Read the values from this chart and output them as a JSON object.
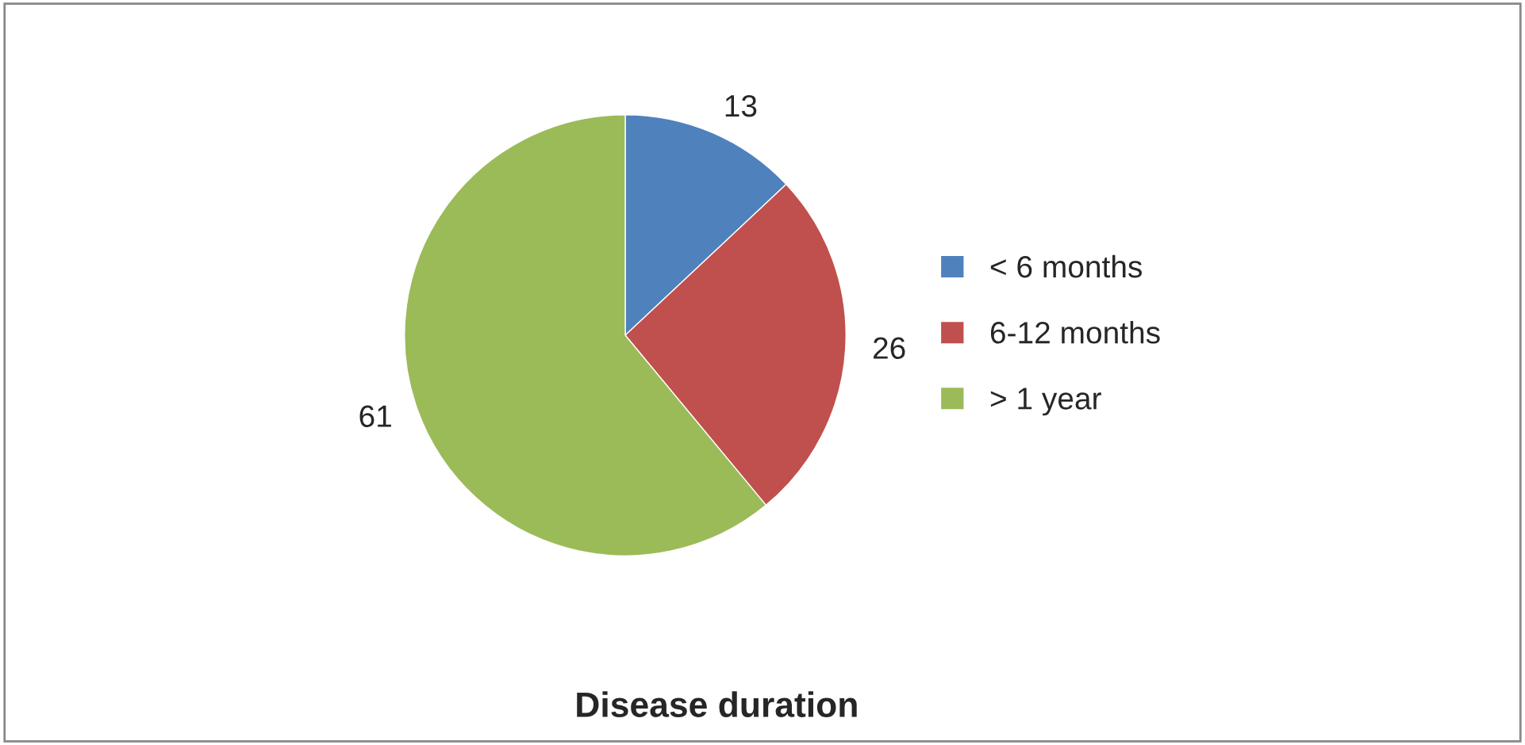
{
  "chart_data": {
    "type": "pie",
    "title": "Disease duration",
    "categories": [
      "< 6 months",
      "6-12 months",
      "> 1 year"
    ],
    "values": [
      13,
      26,
      61
    ],
    "colors": [
      "#4f81bd",
      "#c0504d",
      "#9bbb59"
    ],
    "data_labels": true,
    "legend": "right"
  }
}
